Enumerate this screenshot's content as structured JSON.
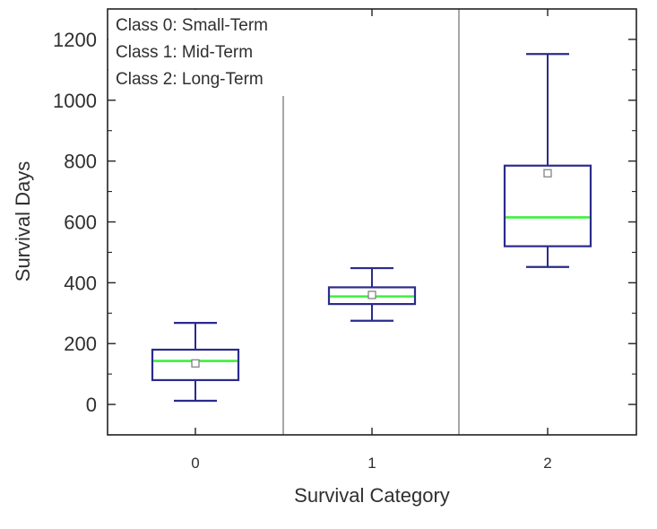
{
  "chart_data": {
    "type": "box",
    "xlabel": "Survival Category",
    "ylabel": "Survival Days",
    "ylim": [
      -100,
      1300
    ],
    "yticks": [
      0,
      200,
      400,
      600,
      800,
      1000,
      1200
    ],
    "categories": [
      "0",
      "1",
      "2"
    ],
    "annotations": [
      "Class 0: Small-Term",
      "Class 1: Mid-Term",
      "Class 2: Long-Term"
    ],
    "boxes": [
      {
        "category": "0",
        "whisker_low": 12,
        "q1": 80,
        "median": 143,
        "q3": 180,
        "whisker_high": 268,
        "mean": 135
      },
      {
        "category": "1",
        "whisker_low": 275,
        "q1": 330,
        "median": 355,
        "q3": 385,
        "whisker_high": 448,
        "mean": 360
      },
      {
        "category": "2",
        "whisker_low": 452,
        "q1": 520,
        "median": 615,
        "q3": 785,
        "whisker_high": 1152,
        "mean": 760
      }
    ],
    "colors": {
      "box": "#2b2b8c",
      "median": "#3cf03c",
      "mean_marker": "#7a7a7a",
      "divider": "#8a8a8a",
      "axis": "#222222"
    }
  }
}
